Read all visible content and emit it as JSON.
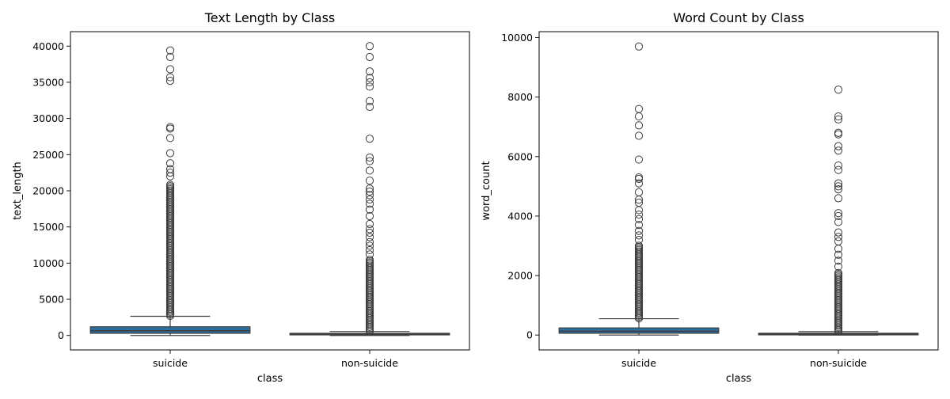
{
  "chart_data": [
    {
      "type": "box",
      "title": "Text Length by Class",
      "xlabel": "class",
      "ylabel": "text_length",
      "categories": [
        "suicide",
        "non-suicide"
      ],
      "ylim": [
        -2000,
        42000
      ],
      "yticks": [
        0,
        5000,
        10000,
        15000,
        20000,
        25000,
        30000,
        35000,
        40000
      ],
      "box_color": "#2e6fa2",
      "boxes": [
        {
          "category": "suicide",
          "whisker_low": 0,
          "q1": 300,
          "median": 650,
          "q3": 1200,
          "whisker_high": 2650,
          "outlier_band": [
            2700,
            21000
          ],
          "outliers": [
            22000,
            22500,
            23000,
            23800,
            25200,
            27300,
            28600,
            28800,
            35200,
            35700,
            36800,
            38500,
            39400
          ]
        },
        {
          "category": "non-suicide",
          "whisker_low": 0,
          "q1": 80,
          "median": 150,
          "q3": 300,
          "whisker_high": 550,
          "outlier_band": [
            600,
            10500
          ],
          "outliers": [
            11200,
            11800,
            12400,
            12900,
            13600,
            14200,
            14700,
            15400,
            16500,
            17400,
            18200,
            18800,
            19400,
            19900,
            20300,
            21400,
            22800,
            24100,
            24600,
            27200,
            31600,
            32400,
            34400,
            35000,
            35600,
            36500,
            38500,
            40000
          ]
        }
      ]
    },
    {
      "type": "box",
      "title": "Word Count by Class",
      "xlabel": "class",
      "ylabel": "word_count",
      "categories": [
        "suicide",
        "non-suicide"
      ],
      "ylim": [
        -500,
        10200
      ],
      "yticks": [
        0,
        2000,
        4000,
        6000,
        8000,
        10000
      ],
      "box_color": "#2e6fa2",
      "boxes": [
        {
          "category": "suicide",
          "whisker_low": 0,
          "q1": 60,
          "median": 130,
          "q3": 240,
          "whisker_high": 550,
          "outlier_band": [
            560,
            3050
          ],
          "outliers": [
            3200,
            3350,
            3500,
            3700,
            3900,
            4050,
            4200,
            4450,
            4550,
            4800,
            5100,
            5250,
            5300,
            5900,
            6700,
            7050,
            7350,
            7600,
            9700
          ]
        },
        {
          "category": "non-suicide",
          "whisker_low": 0,
          "q1": 15,
          "median": 30,
          "q3": 60,
          "whisker_high": 115,
          "outlier_band": [
            120,
            2100
          ],
          "outliers": [
            2300,
            2500,
            2700,
            2900,
            3150,
            3300,
            3450,
            3800,
            4000,
            4100,
            4600,
            4900,
            5000,
            5100,
            5550,
            5700,
            6200,
            6350,
            6750,
            6800,
            7250,
            7350,
            8250
          ]
        }
      ]
    }
  ]
}
